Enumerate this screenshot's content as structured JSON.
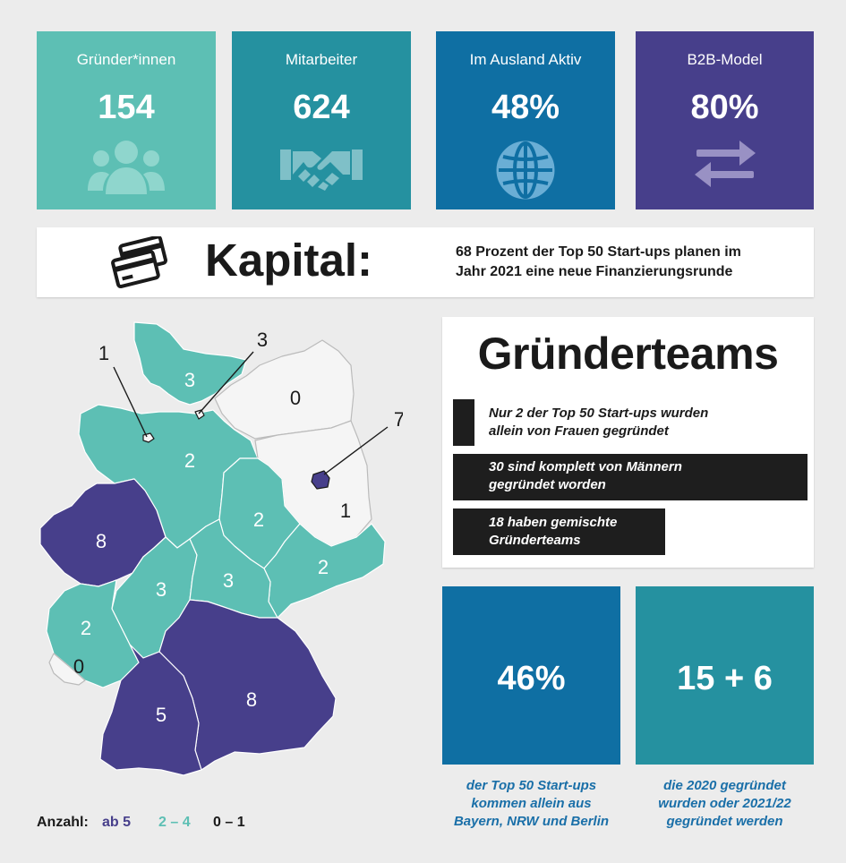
{
  "tiles": [
    {
      "label": "Gründer*innen",
      "value": "154",
      "icon": "people-icon",
      "color": "#5dbfb4"
    },
    {
      "label": "Mitarbeiter",
      "value": "624",
      "icon": "handshake-icon",
      "color": "#2591a0"
    },
    {
      "label": "Im Ausland Aktiv",
      "value": "48%",
      "icon": "globe-icon",
      "color": "#0f6fa3"
    },
    {
      "label": "B2B-Model",
      "value": "80%",
      "icon": "arrows-exchange-icon",
      "color": "#473f8b"
    }
  ],
  "kapital": {
    "title": "Kapital:",
    "icon": "credit-cards-icon",
    "text_line1": "68 Prozent der Top 50 Start-ups planen im",
    "text_line2": "Jahr 2021 eine neue Finanzierungsrunde"
  },
  "gruenderteams": {
    "title": "Gründerteams",
    "bars": [
      {
        "line1": "Nur 2 der Top 50 Start-ups wurden",
        "line2": "allein von Frauen gegründet",
        "count": 2
      },
      {
        "line1": "30 sind komplett von Männern",
        "line2": "gegründet worden",
        "count": 30
      },
      {
        "line1": "18 haben gemischte",
        "line2": "Gründerteams",
        "count": 18
      }
    ]
  },
  "stats": [
    {
      "value": "46%",
      "color": "#0f6fa3",
      "caption": [
        "der Top 50 Start-ups",
        "kommen allein aus",
        "Bayern, NRW und Berlin"
      ]
    },
    {
      "value": "15 + 6",
      "color": "#2591a0",
      "caption": [
        "die 2020 gegründet",
        "wurden oder 2021/22",
        "gegründet werden"
      ]
    }
  ],
  "map": {
    "labels": {
      "schleswig_holstein": "3",
      "hamburg": "1",
      "bremen_callout": "3",
      "mecklenburg": "0",
      "berlin": "7",
      "brandenburg": "1",
      "niedersachsen": "2",
      "sachsen_anhalt": "2",
      "nrw": "8",
      "sachsen": "2",
      "hessen": "3",
      "thueringen": "3",
      "rheinland_pfalz": "2",
      "saarland": "0",
      "bayern": "8",
      "baden_wuerttemberg": "5"
    },
    "colors": {
      "high": "#473f8b",
      "mid": "#5dbfb4",
      "low": "#f5f5f5"
    }
  },
  "legend": {
    "title": "Anzahl:",
    "high": "ab 5",
    "mid": "2 – 4",
    "low": "0 – 1",
    "high_color": "#473f8b",
    "mid_color": "#5dbfb4",
    "low_color": "#1a1a1a"
  }
}
